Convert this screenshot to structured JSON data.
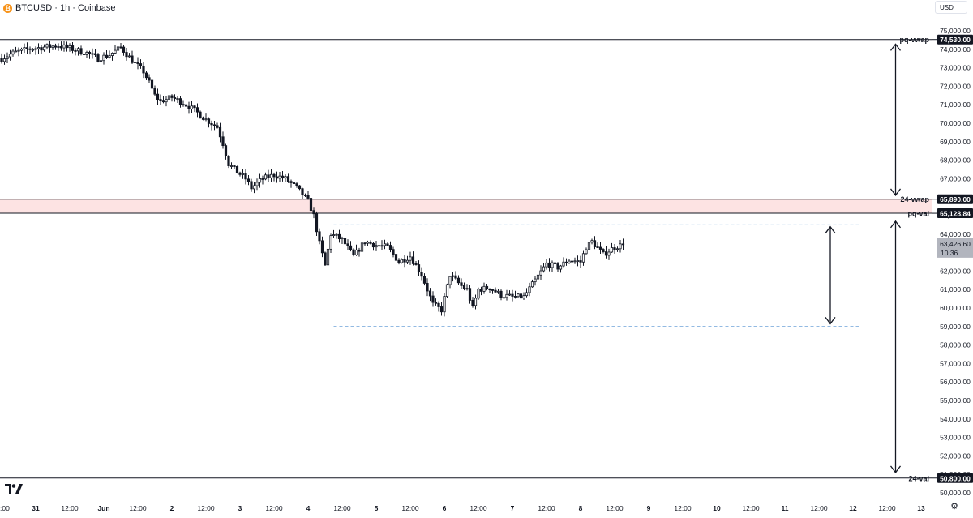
{
  "header": {
    "coin_icon": "bitcoin-icon",
    "title": "BTCUSD · 1h · Coinbase",
    "currency": "USD",
    "settings_icon": "gear-icon",
    "logo": "tradingview-logo"
  },
  "colors": {
    "candle": "#131722",
    "zone_fill": "#fde3e3",
    "dashed": "#6fa3d9",
    "label_bg": "#131722",
    "current_price_bg": "#b2b5be"
  },
  "chart_data": {
    "type": "candlestick",
    "ylim": [
      50000,
      75000
    ],
    "yticks": [
      50000,
      51000,
      52000,
      53000,
      54000,
      55000,
      56000,
      57000,
      58000,
      59000,
      60000,
      61000,
      62000,
      63000,
      64000,
      65000,
      66000,
      67000,
      68000,
      69000,
      70000,
      71000,
      72000,
      73000,
      74000,
      75000
    ],
    "ytick_labels": [
      "50,000.00",
      "51,000.00",
      "52,000.00",
      "53,000.00",
      "54,000.00",
      "55,000.00",
      "56,000.00",
      "57,000.00",
      "58,000.00",
      "59,000.00",
      "60,000.00",
      "61,000.00",
      "62,000.00",
      "63,000.00",
      "64,000.00",
      "65,000.00",
      "66,000.00",
      "67,000.00",
      "68,000.00",
      "69,000.00",
      "70,000.00",
      "71,000.00",
      "72,000.00",
      "73,000.00",
      "74,000.00",
      "75,000.00"
    ],
    "xlim_hours": [
      -12,
      347
    ],
    "xticks": [
      {
        "h": 0,
        "label": "31"
      },
      {
        "h": 12,
        "label": "12:00"
      },
      {
        "h": 24,
        "label": "Jun"
      },
      {
        "h": 36,
        "label": "12:00"
      },
      {
        "h": 48,
        "label": "2"
      },
      {
        "h": 60,
        "label": "12:00"
      },
      {
        "h": 72,
        "label": "3"
      },
      {
        "h": 84,
        "label": "12:00"
      },
      {
        "h": 96,
        "label": "4"
      },
      {
        "h": 108,
        "label": "12:00"
      },
      {
        "h": 120,
        "label": "5"
      },
      {
        "h": 132,
        "label": "12:00"
      },
      {
        "h": 144,
        "label": "6"
      },
      {
        "h": 156,
        "label": "12:00"
      },
      {
        "h": 168,
        "label": "7"
      },
      {
        "h": 180,
        "label": "12:00"
      },
      {
        "h": 192,
        "label": "8"
      },
      {
        "h": 204,
        "label": "12:00"
      },
      {
        "h": 216,
        "label": "9"
      },
      {
        "h": 228,
        "label": "12:00"
      },
      {
        "h": 240,
        "label": "10"
      },
      {
        "h": 252,
        "label": "12:00"
      },
      {
        "h": 264,
        "label": "11"
      },
      {
        "h": 276,
        "label": "12:00"
      },
      {
        "h": 288,
        "label": "12"
      },
      {
        "h": 300,
        "label": "12:00"
      },
      {
        "h": 312,
        "label": "13"
      }
    ],
    "left_edge_label": ":00",
    "candle_keypoints": [
      [
        -12,
        73500
      ],
      [
        -8,
        73800
      ],
      [
        -3,
        74000
      ],
      [
        2,
        74100
      ],
      [
        8,
        74200
      ],
      [
        12,
        74050
      ],
      [
        18,
        73800
      ],
      [
        22,
        73500
      ],
      [
        26,
        73700
      ],
      [
        30,
        74100
      ],
      [
        34,
        73400
      ],
      [
        38,
        72800
      ],
      [
        40,
        72200
      ],
      [
        42,
        71500
      ],
      [
        44,
        71200
      ],
      [
        48,
        71400
      ],
      [
        52,
        71100
      ],
      [
        56,
        70700
      ],
      [
        60,
        70200
      ],
      [
        64,
        69800
      ],
      [
        66,
        68900
      ],
      [
        68,
        67800
      ],
      [
        70,
        67500
      ],
      [
        74,
        67000
      ],
      [
        76,
        66500
      ],
      [
        80,
        67000
      ],
      [
        84,
        67200
      ],
      [
        88,
        67000
      ],
      [
        92,
        66500
      ],
      [
        96,
        65800
      ],
      [
        98,
        65000
      ],
      [
        100,
        63500
      ],
      [
        102,
        62300
      ],
      [
        104,
        64000
      ],
      [
        108,
        63700
      ],
      [
        112,
        62800
      ],
      [
        116,
        63600
      ],
      [
        120,
        63400
      ],
      [
        124,
        63300
      ],
      [
        128,
        62500
      ],
      [
        132,
        62800
      ],
      [
        136,
        61800
      ],
      [
        140,
        60200
      ],
      [
        143,
        59900
      ],
      [
        146,
        61800
      ],
      [
        150,
        61200
      ],
      [
        152,
        61000
      ],
      [
        154,
        60000
      ],
      [
        156,
        61000
      ],
      [
        160,
        61100
      ],
      [
        164,
        60700
      ],
      [
        168,
        60600
      ],
      [
        172,
        60600
      ],
      [
        176,
        61500
      ],
      [
        180,
        62400
      ],
      [
        184,
        62200
      ],
      [
        188,
        62600
      ],
      [
        192,
        62500
      ],
      [
        194,
        63300
      ],
      [
        196,
        63600
      ],
      [
        200,
        62900
      ],
      [
        202,
        63100
      ],
      [
        204,
        63300
      ],
      [
        207,
        63426.6
      ]
    ],
    "horizontal_levels": [
      {
        "name": "pq-vwap",
        "price": 74530,
        "label": "74,530.00",
        "style": "solid"
      },
      {
        "name": "24-vwap",
        "price": 65890,
        "label": "65,890.00",
        "style": "solid"
      },
      {
        "name": "pq-val",
        "price": 65128.84,
        "label": "65,128.84",
        "style": "solid"
      },
      {
        "name": "24-val",
        "price": 50800,
        "label": "50,800.00",
        "style": "solid"
      }
    ],
    "zone": {
      "from_price": 65128.84,
      "to_price": 65890
    },
    "dashed_levels": [
      {
        "price": 64500,
        "from_h": 105,
        "to_h": 291
      },
      {
        "price": 59000,
        "from_h": 105,
        "to_h": 291
      }
    ],
    "arrows": [
      {
        "h": 303,
        "from_price": 74280,
        "to_price": 66100
      },
      {
        "h": 303,
        "from_price": 64700,
        "to_price": 51100
      },
      {
        "h": 280,
        "from_price": 64400,
        "to_price": 59150
      }
    ],
    "current_price": {
      "price": 63426.6,
      "label": "63,426.60",
      "countdown": "10:36"
    }
  }
}
